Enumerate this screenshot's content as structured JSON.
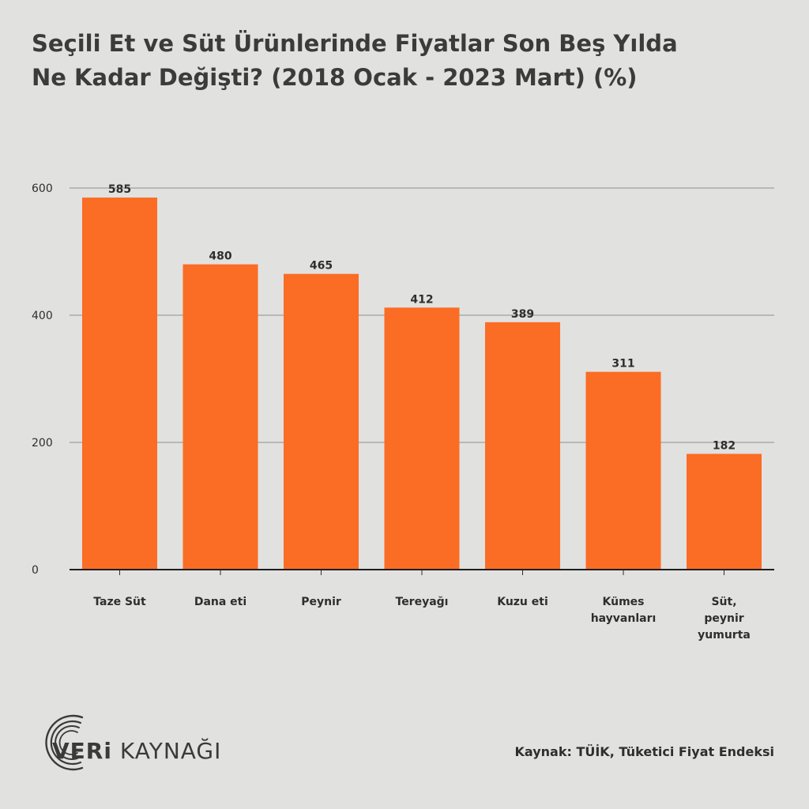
{
  "title": {
    "line1": "Seçili Et ve Süt Ürünlerinde Fiyatlar Son Beş Yılda",
    "line2": "Ne Kadar Değişti? (2018 Ocak - 2023 Mart) (%)"
  },
  "chart_data": {
    "type": "bar",
    "categories": [
      [
        "Taze Süt"
      ],
      [
        "Dana eti"
      ],
      [
        "Peynir"
      ],
      [
        "Tereyağı"
      ],
      [
        "Kuzu eti"
      ],
      [
        "Kümes",
        "hayvanları"
      ],
      [
        "Süt,",
        "peynir",
        "yumurta"
      ]
    ],
    "values": [
      585,
      480,
      465,
      412,
      389,
      311,
      182
    ],
    "ylim": [
      0,
      600
    ],
    "yticks": [
      0,
      200,
      400,
      600
    ],
    "grid": true,
    "bar_color": "#fb6c24",
    "xlabel": "",
    "ylabel": ""
  },
  "logo": {
    "strong": "VERi",
    "light": " KAYNAĞI"
  },
  "source": "Kaynak: TÜİK, Tüketici Fiyat Endeksi"
}
